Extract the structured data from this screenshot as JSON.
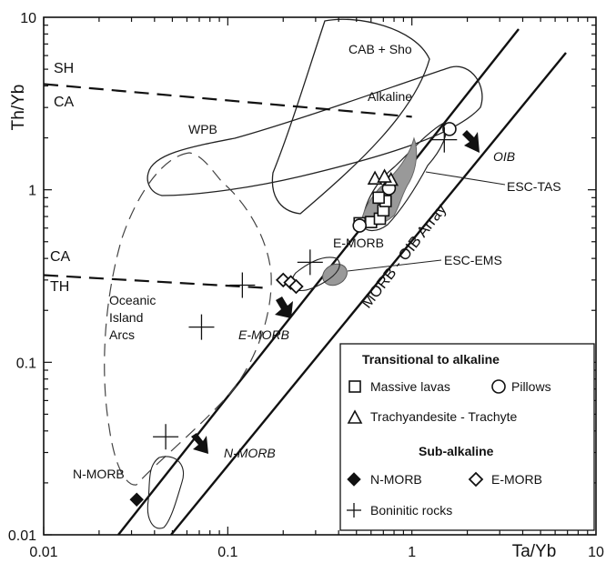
{
  "chart_data": {
    "type": "scatter",
    "title": "",
    "xlabel": "Ta/Yb",
    "ylabel": "Th/Yb",
    "x_scale": "log",
    "y_scale": "log",
    "xlim": [
      0.01,
      10
    ],
    "ylim": [
      0.01,
      10
    ],
    "x_ticks": [
      "0.01",
      "0.1",
      "1",
      "10"
    ],
    "y_ticks": [
      "0.01",
      "0.1",
      "1",
      "10"
    ],
    "grid": false,
    "array_label": "MORB - OIB Array",
    "field_labels": {
      "cab_sho": "CAB + Sho",
      "sh": "SH",
      "ca_upper": "CA",
      "alkaline": "Alkaline",
      "wpb": "WPB",
      "ca_lower": "CA",
      "th": "TH",
      "oceanic_arcs": "Oceanic Island Arcs",
      "oib": "OIB",
      "esc_tas": "ESC-TAS",
      "e_morb_field": "E-MORB",
      "esc_ems": "ESC-EMS",
      "e_morb_ref": "E-MORB",
      "n_morb_ref": "N-MORB",
      "n_morb_field": "N-MORB"
    },
    "dividers": [
      {
        "from": [
          0.01,
          4.1
        ],
        "to": [
          1.0,
          2.65
        ]
      },
      {
        "from": [
          0.01,
          0.32
        ],
        "to": [
          0.16,
          0.27
        ]
      }
    ],
    "legend": {
      "position": "bottom-right",
      "group1_title": "Transitional to alkaline",
      "group2_title": "Sub-alkaline",
      "entries": {
        "massive_lavas": "Massive lavas",
        "pillows": "Pillows",
        "trachyandesite": "Trachyandesite - Trachyte",
        "n_morb": "N-MORB",
        "e_morb": "E-MORB",
        "boninitic": "Boninitic rocks"
      }
    },
    "series": [
      {
        "name": "Massive lavas",
        "marker": "square",
        "points": [
          [
            0.52,
            0.64
          ],
          [
            0.6,
            0.65
          ],
          [
            0.67,
            0.68
          ],
          [
            0.7,
            0.76
          ],
          [
            0.72,
            0.86
          ],
          [
            0.66,
            0.9
          ]
        ]
      },
      {
        "name": "Pillows",
        "marker": "circle",
        "points": [
          [
            0.52,
            0.62
          ],
          [
            0.75,
            1.02
          ],
          [
            1.6,
            2.25
          ]
        ]
      },
      {
        "name": "Trachyandesite - Trachyte",
        "marker": "triangle",
        "points": [
          [
            0.63,
            1.15
          ],
          [
            0.77,
            1.13
          ],
          [
            0.71,
            1.18
          ]
        ]
      },
      {
        "name": "N-MORB",
        "marker": "filled-diamond",
        "points": [
          [
            0.032,
            0.016
          ]
        ]
      },
      {
        "name": "E-MORB",
        "marker": "diamond",
        "points": [
          [
            0.2,
            0.3
          ],
          [
            0.22,
            0.29
          ],
          [
            0.235,
            0.275
          ]
        ]
      },
      {
        "name": "Boninitic rocks",
        "marker": "cross",
        "points": [
          [
            0.046,
            0.037
          ],
          [
            0.072,
            0.16
          ],
          [
            0.12,
            0.28
          ],
          [
            0.28,
            0.38
          ],
          [
            1.5,
            1.95
          ]
        ]
      }
    ]
  }
}
